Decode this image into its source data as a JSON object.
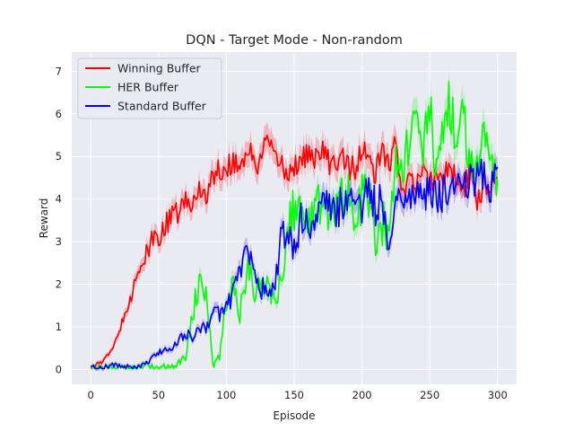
{
  "chart_data": {
    "type": "line",
    "title": "DQN - Target Mode - Non-random",
    "xlabel": "Episode",
    "ylabel": "Reward",
    "xlim": [
      -14,
      314
    ],
    "ylim": [
      -0.35,
      7.45
    ],
    "xticks": [
      0,
      50,
      100,
      150,
      200,
      250,
      300
    ],
    "yticks": [
      0,
      1,
      2,
      3,
      4,
      5,
      6,
      7
    ],
    "grid": true,
    "legend_position": "top-left",
    "background": "#eaeaf2",
    "series": [
      {
        "name": "Winning Buffer",
        "color": "#ff0000",
        "x": [
          0,
          5,
          10,
          15,
          20,
          25,
          30,
          35,
          40,
          45,
          50,
          55,
          60,
          65,
          70,
          75,
          80,
          85,
          90,
          95,
          100,
          105,
          110,
          115,
          120,
          125,
          130,
          135,
          140,
          145,
          150,
          155,
          160,
          165,
          170,
          175,
          180,
          185,
          190,
          195,
          200,
          205,
          210,
          215,
          220,
          225,
          230,
          235,
          240,
          245,
          250,
          255,
          260,
          265,
          270,
          275,
          280,
          285,
          290,
          295,
          300
        ],
        "values": [
          0.05,
          0.12,
          0.22,
          0.45,
          0.75,
          1.35,
          1.75,
          2.35,
          2.6,
          2.95,
          3.15,
          3.35,
          3.55,
          3.75,
          3.9,
          3.85,
          4.25,
          4.15,
          4.45,
          4.75,
          4.65,
          4.95,
          4.7,
          5.2,
          4.9,
          4.8,
          5.45,
          4.85,
          4.95,
          4.5,
          4.8,
          4.9,
          5.1,
          4.85,
          5.15,
          4.9,
          4.75,
          5.15,
          4.75,
          4.7,
          5.15,
          4.9,
          4.55,
          5.15,
          4.8,
          5.25,
          4.25,
          4.5,
          4.2,
          4.75,
          4.35,
          4.6,
          4.55,
          4.8,
          4.35,
          4.25,
          4.6,
          4.0,
          4.35,
          4.45,
          4.5
        ],
        "noise": 0.3
      },
      {
        "name": "HER Buffer",
        "color": "#00ff00",
        "x": [
          0,
          5,
          10,
          15,
          20,
          25,
          30,
          35,
          40,
          45,
          50,
          55,
          60,
          65,
          70,
          75,
          80,
          85,
          90,
          95,
          100,
          105,
          110,
          115,
          120,
          125,
          130,
          135,
          140,
          145,
          150,
          155,
          160,
          165,
          170,
          175,
          180,
          185,
          190,
          195,
          200,
          205,
          210,
          215,
          220,
          225,
          230,
          235,
          240,
          245,
          250,
          255,
          260,
          265,
          270,
          275,
          280,
          285,
          290,
          295,
          300
        ],
        "values": [
          0.05,
          0.04,
          0.05,
          0.05,
          0.05,
          0.05,
          0.05,
          0.05,
          0.05,
          0.05,
          0.05,
          0.05,
          0.1,
          0.15,
          0.3,
          1.3,
          2.05,
          1.9,
          0.1,
          0.3,
          1.6,
          1.95,
          1.35,
          2.3,
          2.05,
          1.75,
          2.3,
          1.45,
          2.05,
          3.35,
          3.85,
          3.75,
          3.0,
          4.2,
          3.95,
          3.7,
          3.8,
          3.95,
          4.3,
          3.2,
          4.1,
          4.05,
          3.1,
          3.4,
          3.35,
          5.2,
          4.6,
          5.45,
          5.75,
          5.1,
          6.15,
          4.4,
          5.85,
          6.25,
          5.3,
          5.9,
          4.8,
          5.0,
          5.35,
          5.5,
          4.45
        ],
        "noise": 0.6
      },
      {
        "name": "Standard Buffer",
        "color": "#0000ff",
        "x": [
          0,
          5,
          10,
          15,
          20,
          25,
          30,
          35,
          40,
          45,
          50,
          55,
          60,
          65,
          70,
          75,
          80,
          85,
          90,
          95,
          100,
          105,
          110,
          115,
          120,
          125,
          130,
          135,
          140,
          145,
          150,
          155,
          160,
          165,
          170,
          175,
          180,
          185,
          190,
          195,
          200,
          205,
          210,
          215,
          220,
          225,
          230,
          235,
          240,
          245,
          250,
          255,
          260,
          265,
          270,
          275,
          280,
          285,
          290,
          295,
          300
        ],
        "values": [
          0.05,
          0.05,
          0.05,
          0.1,
          0.1,
          0.05,
          0.05,
          0.05,
          0.1,
          0.25,
          0.4,
          0.45,
          0.5,
          0.7,
          0.85,
          0.75,
          0.9,
          1.0,
          1.35,
          1.3,
          1.45,
          1.8,
          2.4,
          2.75,
          2.4,
          1.85,
          1.95,
          1.75,
          3.05,
          3.25,
          2.7,
          3.55,
          3.6,
          3.35,
          3.75,
          3.85,
          3.55,
          3.9,
          4.0,
          4.15,
          3.45,
          4.45,
          3.75,
          4.0,
          2.8,
          4.05,
          4.2,
          4.0,
          4.4,
          3.75,
          4.35,
          3.95,
          4.15,
          4.2,
          4.5,
          4.35,
          4.5,
          4.45,
          4.6,
          4.3,
          4.75
        ],
        "noise": 0.45
      }
    ]
  }
}
